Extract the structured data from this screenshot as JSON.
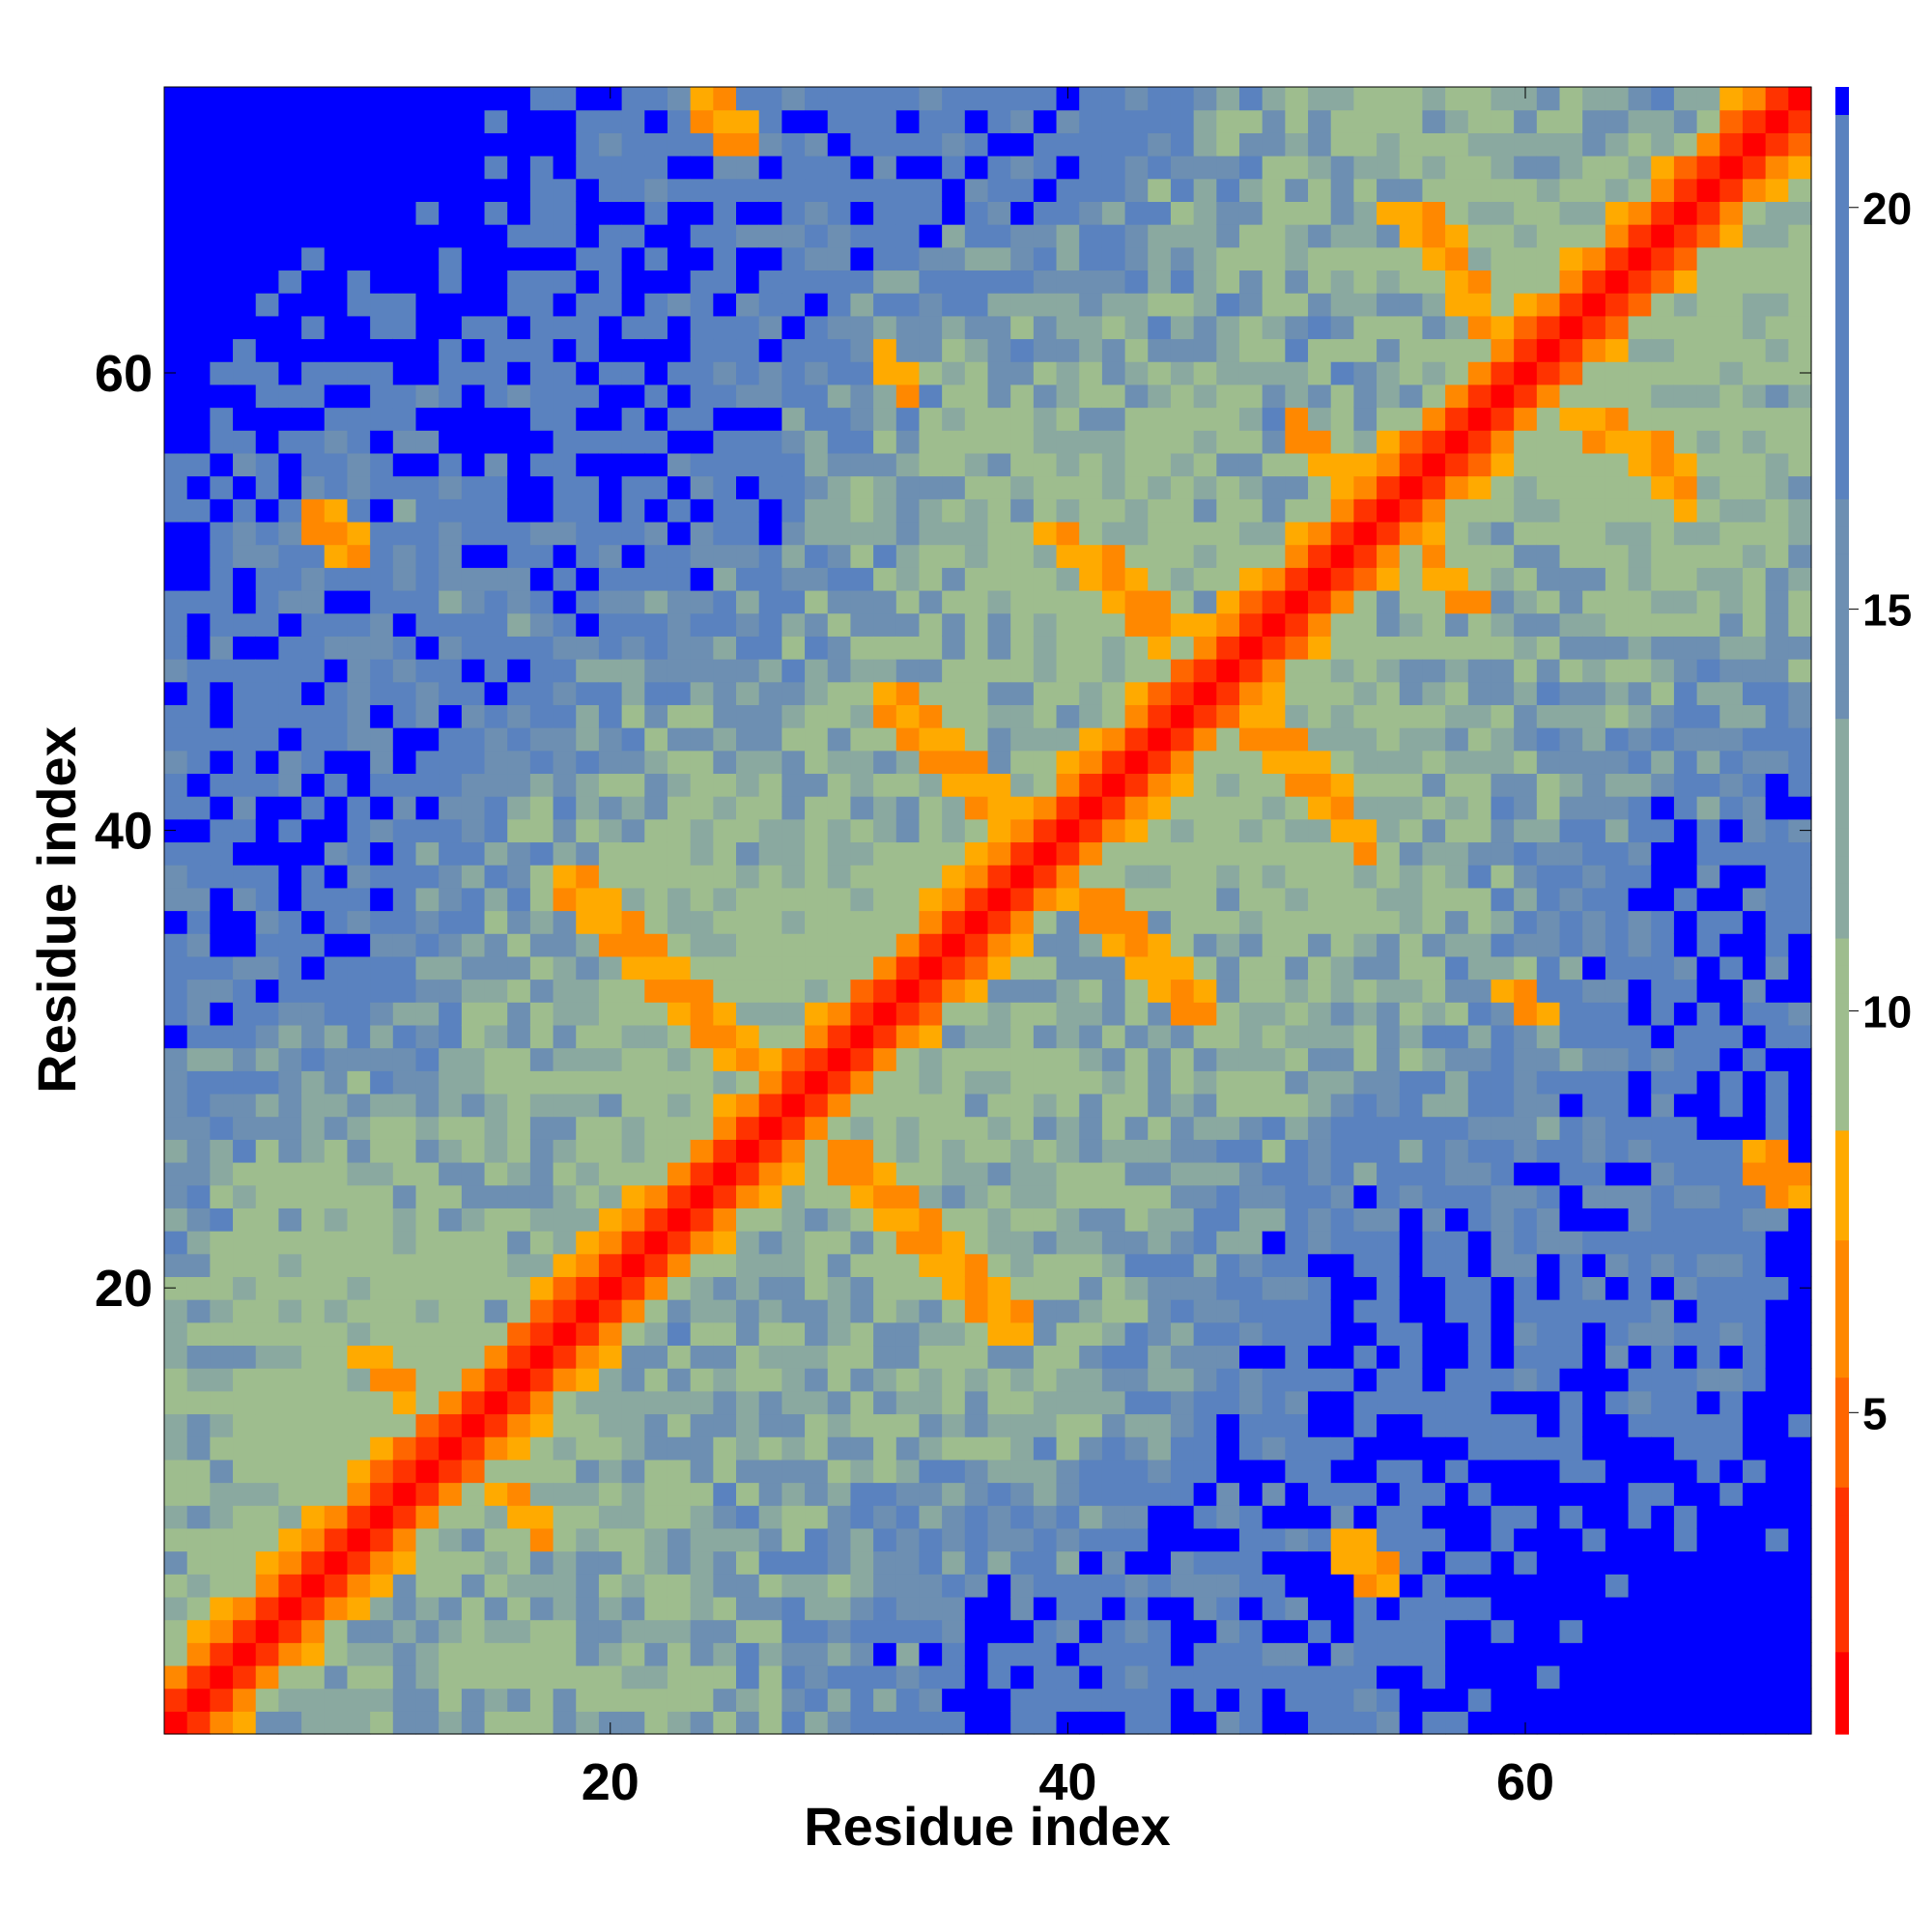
{
  "chart_data": {
    "type": "heatmap",
    "title": "",
    "xlabel": "Residue index",
    "ylabel": "Residue index",
    "n": 72,
    "xlim": [
      0.5,
      72.5
    ],
    "ylim": [
      0.5,
      72.5
    ],
    "x_ticks": [
      20,
      40,
      60
    ],
    "y_ticks": [
      20,
      40,
      60
    ],
    "colorbar": {
      "range": [
        1,
        21.5
      ],
      "ticks": [
        5,
        10,
        15,
        20
      ],
      "colors": [
        "#ff0000",
        "#ff3300",
        "#ff6600",
        "#ff8800",
        "#ffaa00",
        "#9ebd8e",
        "#8aa9a0",
        "#6d8fb2",
        "#5a82bf",
        "#0000ff"
      ]
    },
    "description_values": "distance values per residue pair; diagonal ~1-3 (red), secondary-structure contacts ~5-8 (orange), mid-range 10-18 (green/steel blue), >21 saturated blue",
    "contact_segments": [
      {
        "from": [
          24,
          72
        ],
        "to": [
          26,
          70
        ]
      },
      {
        "from": [
          7,
          54
        ],
        "to": [
          9,
          52
        ]
      },
      {
        "from": [
          19,
          38
        ],
        "to": [
          26,
          29
        ]
      },
      {
        "from": [
          29,
          27
        ],
        "to": [
          38,
          18
        ]
      },
      {
        "from": [
          33,
          46
        ],
        "to": [
          37,
          41
        ]
      },
      {
        "from": [
          40,
          37
        ],
        "to": [
          46,
          32
        ]
      },
      {
        "from": [
          41,
          52
        ],
        "to": [
          46,
          48
        ]
      },
      {
        "from": [
          48,
          45
        ],
        "to": [
          53,
          39
        ]
      },
      {
        "from": [
          52,
          55
        ],
        "to": [
          58,
          50
        ]
      },
      {
        "from": [
          62,
          58
        ],
        "to": [
          67,
          56
        ]
      },
      {
        "from": [
          54,
          67
        ],
        "to": [
          58,
          64
        ]
      },
      {
        "from": [
          70,
          25
        ],
        "to": [
          72,
          24
        ]
      },
      {
        "from": [
          59,
          33
        ],
        "to": [
          61,
          32
        ]
      },
      {
        "from": [
          52,
          8
        ],
        "to": [
          54,
          7
        ]
      },
      {
        "from": [
          11,
          16
        ],
        "to": [
          17,
          9
        ]
      }
    ]
  }
}
